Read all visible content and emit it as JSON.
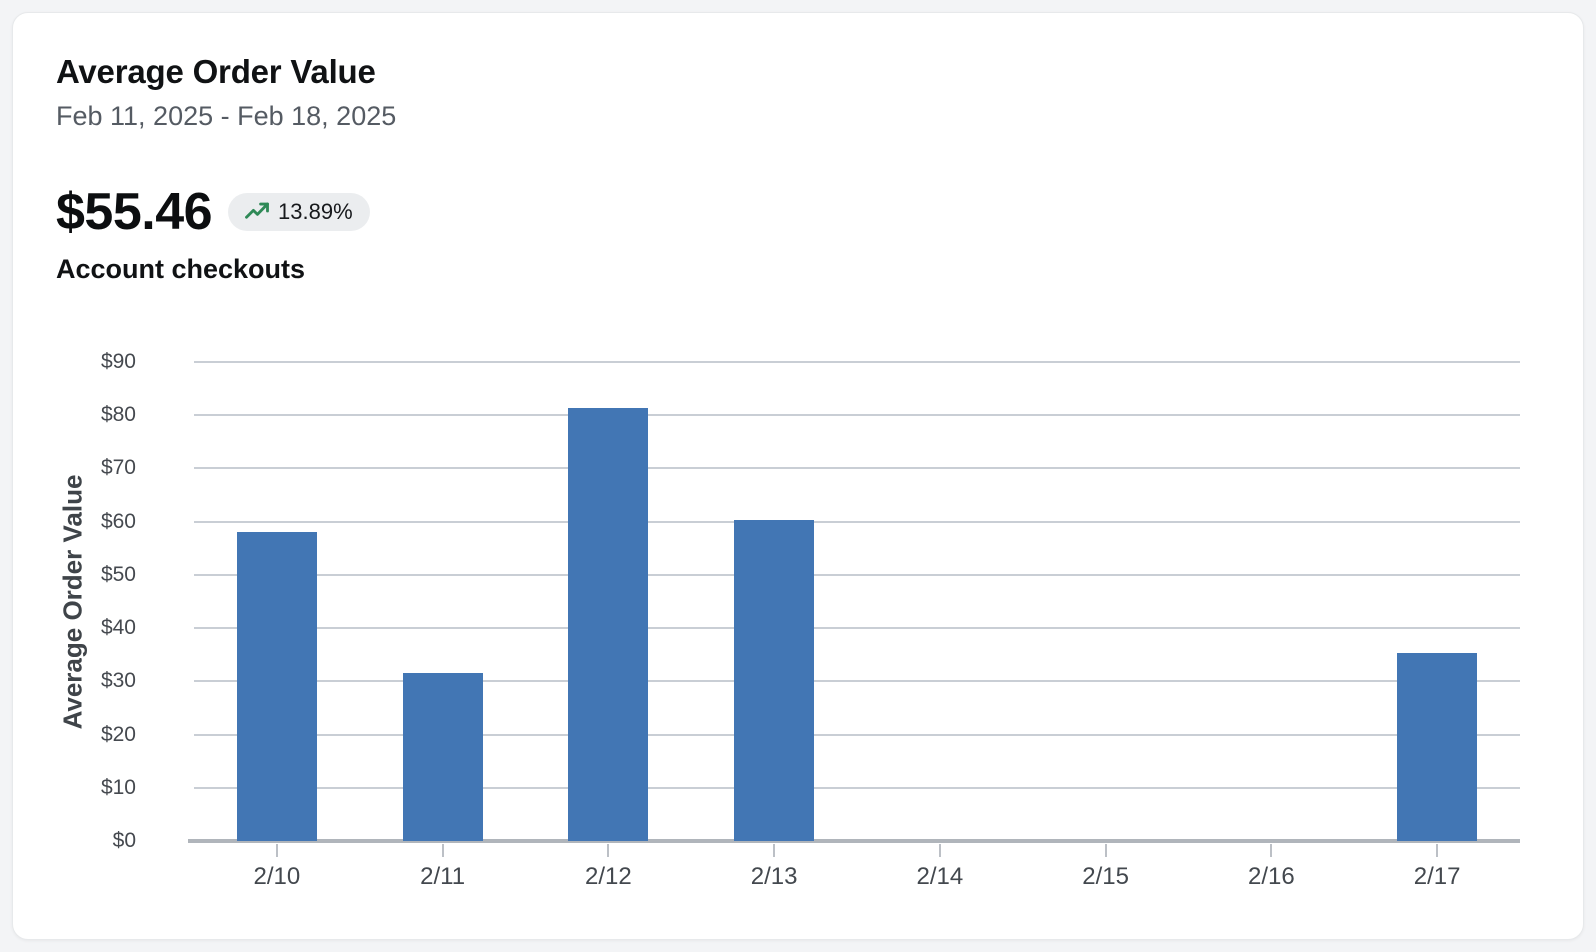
{
  "page": {
    "background": "#f3f4f6"
  },
  "card": {
    "title": "Average Order Value",
    "date_range": "Feb 11, 2025 - Feb 18, 2025",
    "metric": {
      "value": "$55.46",
      "change": "13.89%",
      "trend": "up",
      "label": "Account checkouts"
    }
  },
  "colors": {
    "bar": "#4276b4",
    "gridline": "#c9ced5",
    "axis_line": "#b0b5bb",
    "trend_arrow": "#2f8a57",
    "badge_background": "#ebedef"
  },
  "chart_data": {
    "type": "bar",
    "title": "Average Order Value",
    "categories": [
      "2/10",
      "2/11",
      "2/12",
      "2/13",
      "2/14",
      "2/15",
      "2/16",
      "2/17"
    ],
    "values": [
      58.1,
      31.5,
      81.3,
      60.4,
      0,
      0,
      0,
      35.4
    ],
    "xlabel": "",
    "ylabel": "Average Order Value",
    "ylim": [
      0,
      90
    ],
    "ytick_step": 10,
    "ytick_prefix": "$",
    "grid": true,
    "legend": "none"
  }
}
